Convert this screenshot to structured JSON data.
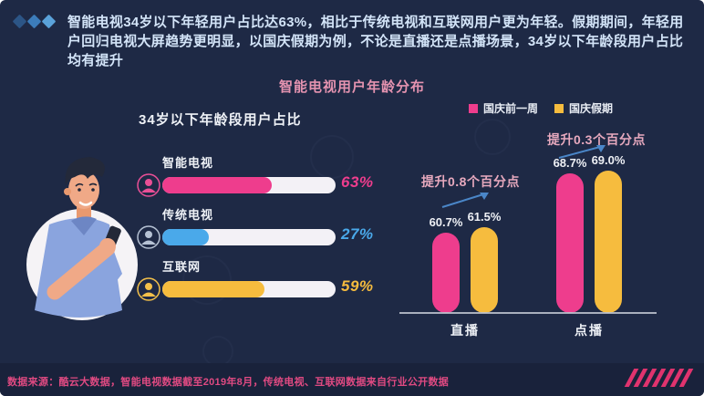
{
  "intro": {
    "text": "智能电视34岁以下年轻用户占比达63%，相比于传统电视和互联网用户更为年轻。假期期间，年轻用户回归电视大屏趋势更明显，以国庆假期为例，不论是直播还是点播场景，34岁以下年龄段用户占比均有提升"
  },
  "title": "智能电视用户年龄分布",
  "footer": {
    "source": "数据来源：酷云大数据，智能电视数据截至2019年8月，传统电视、互联网数据来自行业公开数据"
  },
  "chart_data": [
    {
      "type": "bar",
      "orientation": "horizontal",
      "title": "34岁以下年龄段用户占比",
      "categories": [
        "智能电视",
        "传统电视",
        "互联网"
      ],
      "values": [
        63,
        27,
        59
      ],
      "value_labels": [
        "63%",
        "27%",
        "59%"
      ],
      "colors": [
        "#ee3d8d",
        "#4aa9ea",
        "#f6bc3e"
      ],
      "icon_colors": [
        "#ea4f96",
        "#b6c2d4",
        "#f3c04a"
      ],
      "unit": "%",
      "xlim": [
        0,
        100
      ],
      "grid": false
    },
    {
      "type": "bar",
      "orientation": "vertical",
      "title": "智能电视用户年龄分布",
      "categories": [
        "直播",
        "点播"
      ],
      "series": [
        {
          "name": "国庆前一周",
          "color": "#ee3d8d",
          "values": [
            60.7,
            68.7
          ],
          "value_labels": [
            "60.7%",
            "68.7%"
          ]
        },
        {
          "name": "国庆假期",
          "color": "#f6bc3e",
          "values": [
            61.5,
            69.0
          ],
          "value_labels": [
            "61.5%",
            "69.0%"
          ]
        }
      ],
      "annotations": [
        "提升0.8个百分点",
        "提升0.3个百分点"
      ],
      "unit": "%",
      "ylim_effective": [
        50,
        75
      ],
      "legend_position": "top",
      "grid": false
    }
  ]
}
